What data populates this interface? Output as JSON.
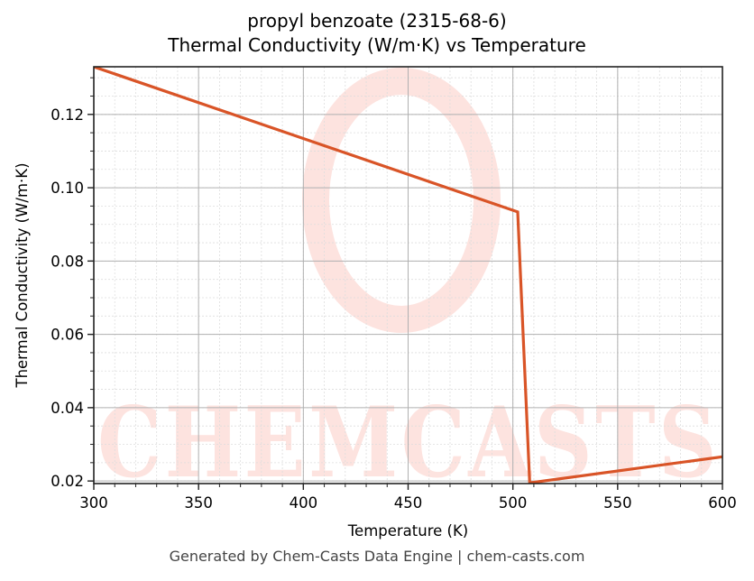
{
  "title": {
    "line1": "propyl benzoate (2315-68-6)",
    "line2": "Thermal Conductivity (W/m·K) vs Temperature"
  },
  "footer": "Generated by Chem-Casts Data Engine | chem-casts.com",
  "watermark": {
    "text": "CHEMCASTS",
    "color": "#fde3df"
  },
  "colors": {
    "line": "#d95427",
    "grid_major": "#b0b0b0",
    "grid_minor": "#dddddd",
    "axis": "#222222"
  },
  "chart_data": {
    "type": "line",
    "title": "propyl benzoate (2315-68-6)\nThermal Conductivity (W/m·K) vs Temperature",
    "xlabel": "Temperature (K)",
    "ylabel": "Thermal Conductivity (W/m·K)",
    "xlim": [
      300,
      600
    ],
    "ylim": [
      0.0193,
      0.133
    ],
    "xticks": [
      300,
      350,
      400,
      450,
      500,
      550,
      600
    ],
    "xtick_labels": [
      "300",
      "350",
      "400",
      "450",
      "500",
      "550",
      "600"
    ],
    "yticks": [
      0.02,
      0.04,
      0.06,
      0.08,
      0.1,
      0.12
    ],
    "ytick_labels": [
      "0.02",
      "0.04",
      "0.06",
      "0.08",
      "0.10",
      "0.12"
    ],
    "grid": {
      "major": true,
      "minor": true
    },
    "legend": null,
    "series": [
      {
        "name": "Thermal Conductivity",
        "color": "#d95427",
        "x": [
          300,
          502.3,
          508.0,
          600
        ],
        "y": [
          0.133,
          0.0934,
          0.0195,
          0.0266
        ]
      }
    ]
  }
}
